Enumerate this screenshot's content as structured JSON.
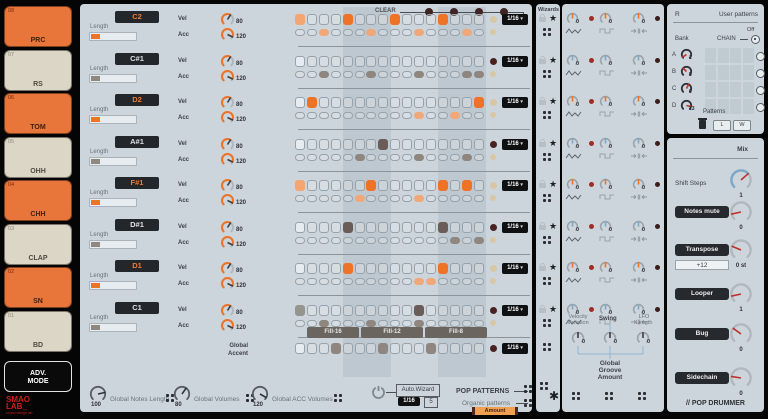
{
  "sidebar": {
    "pads": [
      {
        "num": "08",
        "label": "PRC",
        "color": "orange"
      },
      {
        "num": "07",
        "label": "RS",
        "color": "beige"
      },
      {
        "num": "06",
        "label": "TOM",
        "color": "orange"
      },
      {
        "num": "05",
        "label": "OHH",
        "color": "beige"
      },
      {
        "num": "04",
        "label": "CHH",
        "color": "orange"
      },
      {
        "num": "03",
        "label": "CLAP",
        "color": "beige"
      },
      {
        "num": "02",
        "label": "SN",
        "color": "orange"
      },
      {
        "num": "01",
        "label": "BD",
        "color": "beige"
      }
    ],
    "adv_button": "ADV. MODE",
    "logo_line1": "SMAO",
    "logo_line2": "LAB_",
    "logo_sub": "sound design lab"
  },
  "sequencer": {
    "clear_label": "CLEAR",
    "vel_label": "Vel",
    "acc_label": "Acc",
    "length_label": "Length",
    "vel_value": "80",
    "acc_value": "120",
    "rate": "1/16",
    "steps": 16,
    "playhead": 1,
    "rows": [
      {
        "note": "C2",
        "color": "orange",
        "vel_on": [
          5,
          9,
          13
        ],
        "vel_soft": [
          1
        ],
        "acc_on": [
          3,
          7,
          11,
          15
        ],
        "led": "beige"
      },
      {
        "note": "C#1",
        "color": "gray",
        "vel_on": [],
        "vel_soft": [],
        "acc_on": [
          3,
          7,
          11,
          15,
          16
        ],
        "led": "red"
      },
      {
        "note": "D2",
        "color": "orange",
        "vel_on": [
          2,
          16
        ],
        "vel_soft": [],
        "acc_on": [
          11,
          14
        ],
        "led": "beige"
      },
      {
        "note": "A#1",
        "color": "gray",
        "vel_on": [
          8
        ],
        "vel_soft": [],
        "acc_on": [
          6,
          11,
          15
        ],
        "led": "red"
      },
      {
        "note": "F#1",
        "color": "orange",
        "vel_on": [
          7,
          13,
          15
        ],
        "vel_soft": [
          1
        ],
        "acc_on": [
          6,
          11
        ],
        "led": "beige"
      },
      {
        "note": "D#1",
        "color": "gray",
        "vel_on": [
          5,
          13
        ],
        "vel_soft": [],
        "acc_on": [
          14,
          16
        ],
        "led": "red"
      },
      {
        "note": "D1",
        "color": "orange",
        "vel_on": [
          5,
          13
        ],
        "vel_soft": [],
        "acc_on": [
          11,
          12
        ],
        "led": "beige"
      },
      {
        "note": "C1",
        "color": "gray",
        "vel_on": [
          11
        ],
        "vel_soft": [
          1
        ],
        "acc_on": [
          3,
          7,
          11
        ],
        "led": "red"
      }
    ],
    "global_accent": {
      "label": "Global Accent",
      "steps_on": [
        4,
        8,
        12
      ],
      "rate": "1/16",
      "led": "red"
    },
    "fills": [
      "Fill-16",
      "Fill-12",
      "Fill-8"
    ]
  },
  "bottom_bar": {
    "groups": [
      {
        "value": "100",
        "label": "Global Notes Length"
      },
      {
        "value": "80",
        "label": "Global Volumes"
      },
      {
        "value": "120",
        "label": "Global ACC Volumes"
      }
    ],
    "auto_wizard": {
      "label": "Auto.Wizard",
      "rate": "1/16",
      "count": "5"
    },
    "pop_patterns_label": "POP PATTERNS",
    "organic_label": "Organic patterns",
    "amount_label": "Amount"
  },
  "wizards": {
    "header": "Wizards"
  },
  "groove": {
    "row_knob_value": "0",
    "col_labels": [
      "Velocity Variation",
      "Swing",
      "LFO Length"
    ],
    "global_label": "Global Groove Amount",
    "global_knob_values": [
      "0",
      "0",
      "0"
    ]
  },
  "user_patterns": {
    "header_left": "R",
    "header_right": "User patterns",
    "off_label": "Off",
    "bank_label": "Bank",
    "chain_label": "CHAIN",
    "banks": [
      {
        "letter": "A",
        "value": "1"
      },
      {
        "letter": "B",
        "value": "5"
      },
      {
        "letter": "C",
        "value": "9"
      },
      {
        "letter": "D",
        "value": "13"
      }
    ],
    "patterns_label": "Patterns",
    "load_label": "L",
    "write_label": "W"
  },
  "mix": {
    "header": "Mix",
    "items": [
      {
        "label": "Shift Steps",
        "kind": "text",
        "value": "1"
      },
      {
        "label": "Notes mute",
        "kind": "button",
        "value": "0"
      },
      {
        "label": "Transpose",
        "kind": "button",
        "value": "0 st",
        "field": "+12"
      },
      {
        "label": "Looper",
        "kind": "button",
        "value": "1"
      },
      {
        "label": "Bug",
        "kind": "button",
        "value": "0"
      },
      {
        "label": "Sidechain",
        "kind": "button",
        "value": "0"
      }
    ],
    "footer": "// POP DRUMMER"
  },
  "colors": {
    "orange_on": "#ee7326",
    "orange_soft": "#f4a571",
    "orange_acc": "#f0a879",
    "gray_on": "#6a5d58",
    "gray_soft": "#96948e",
    "gray_acc": "#8e867f",
    "playhead": "#e6edf2",
    "led_beige": "#d9c7a4",
    "led_red": "#4a2020",
    "tick_blue": "#7fa8c8",
    "tick_red": "#c03028"
  }
}
